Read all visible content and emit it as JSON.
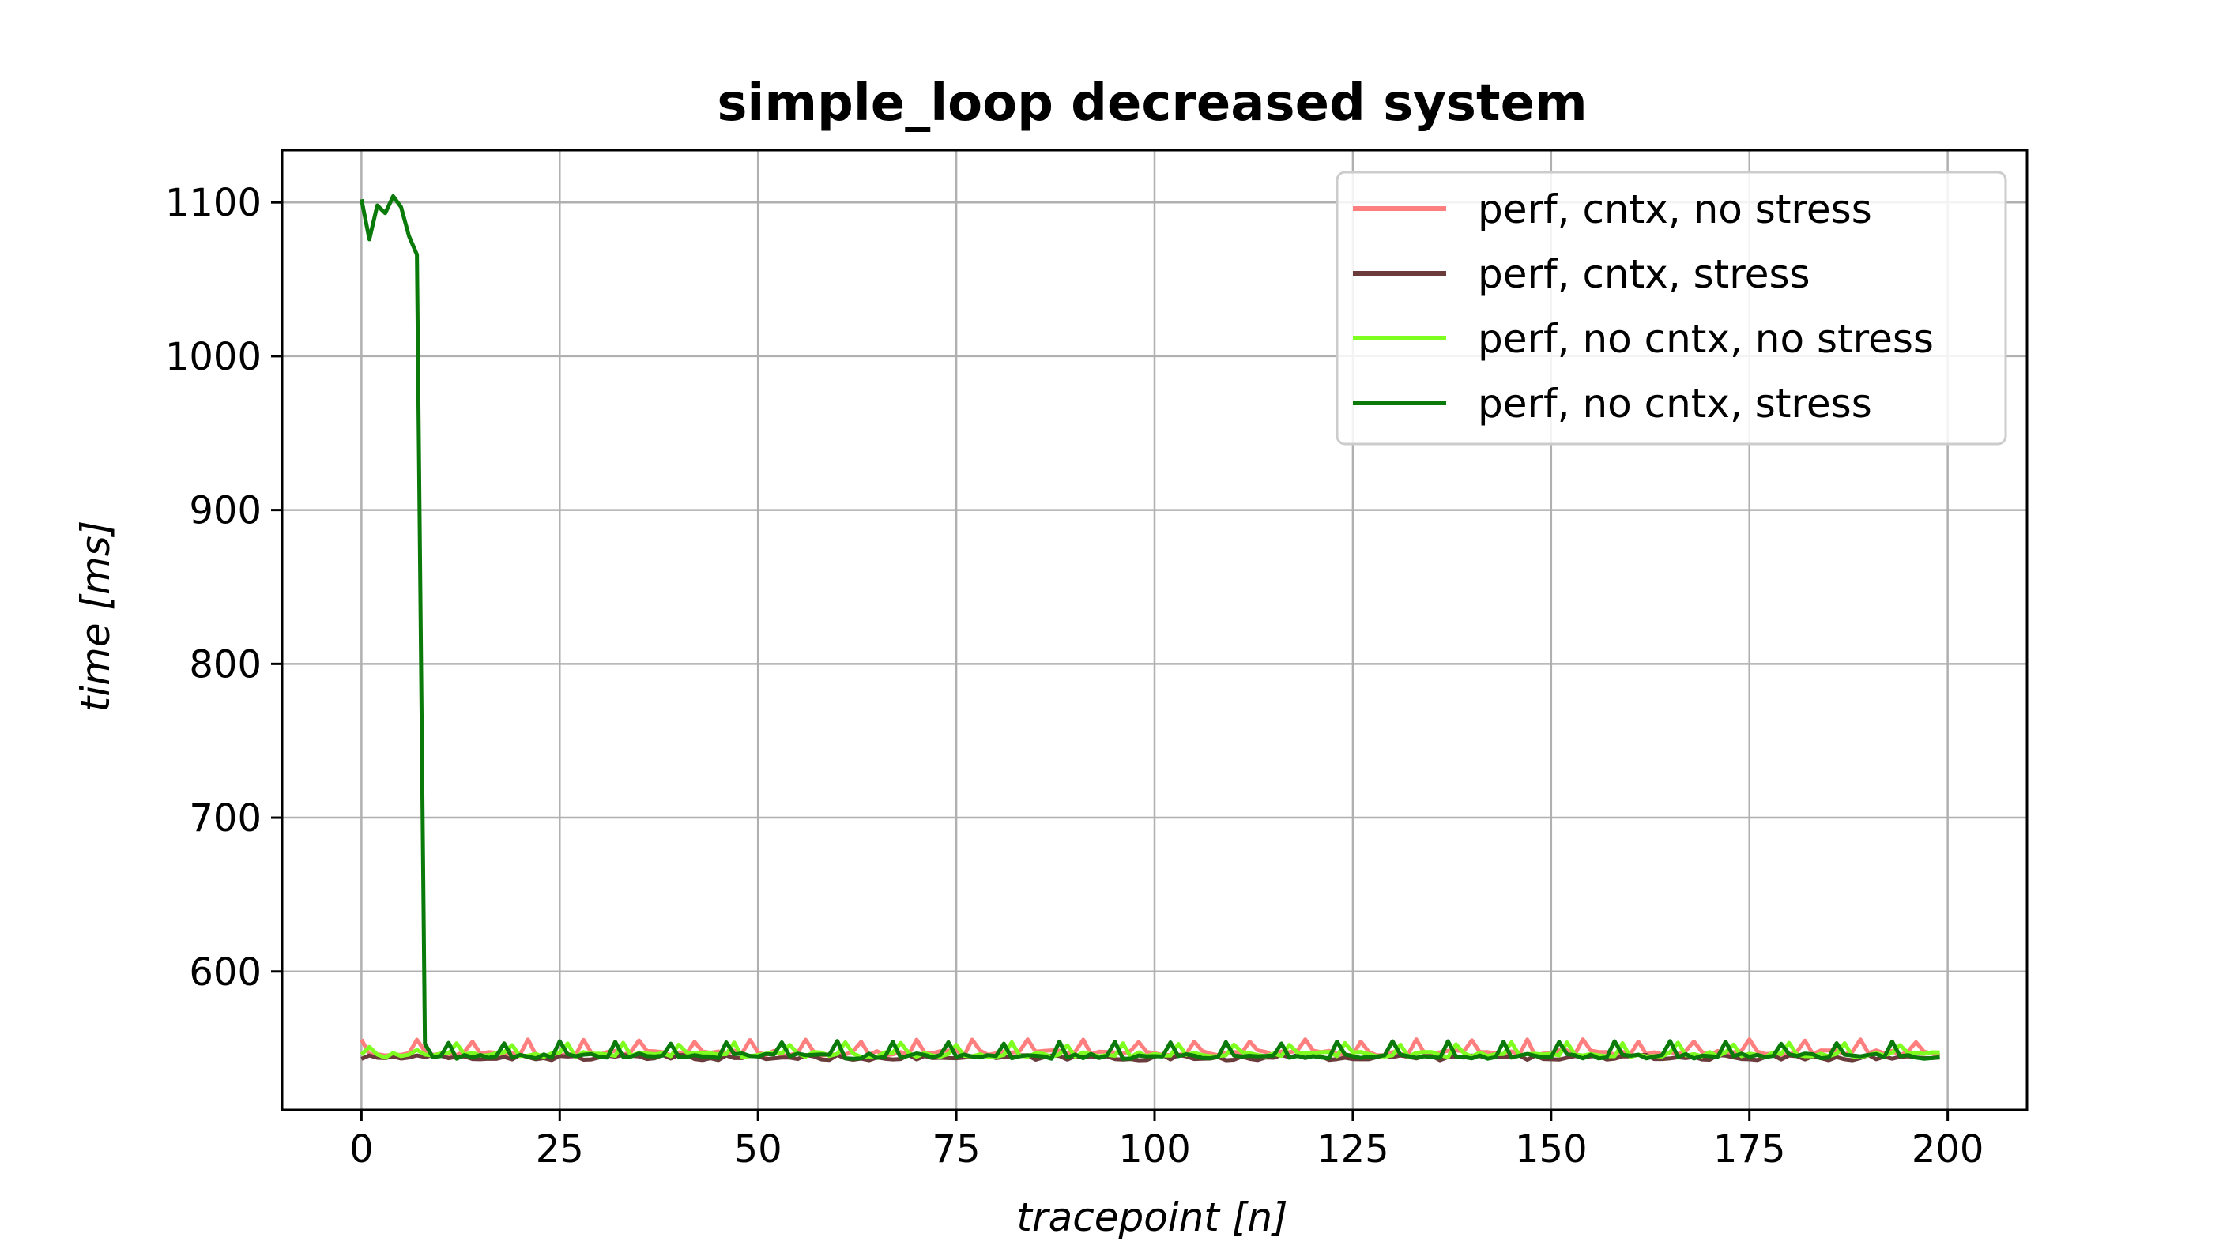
{
  "chart_data": {
    "type": "line",
    "title": "simple_loop decreased system",
    "xlabel": "tracepoint [n]",
    "ylabel": "time [ms]",
    "xlim": [
      -10,
      210
    ],
    "ylim": [
      510,
      1134
    ],
    "xticks": [
      0,
      25,
      50,
      75,
      100,
      125,
      150,
      175,
      200
    ],
    "yticks": [
      600,
      700,
      800,
      900,
      1000,
      1100
    ],
    "grid": true,
    "legend_position": "top-right",
    "n_points": 200,
    "series": [
      {
        "name": "perf, cntx, no stress",
        "color": "#ff7f7f",
        "base": 547,
        "spike_every": 7,
        "spike_value": 556,
        "values_prefix": []
      },
      {
        "name": "perf, cntx, stress",
        "color": "#6b3a3a",
        "base": 544,
        "spike_every": 0,
        "spike_value": 544,
        "values_prefix": []
      },
      {
        "name": "perf, no cntx, no stress",
        "color": "#7fff1f",
        "base": 546,
        "spike_every": 7,
        "spike_value": 554,
        "values_prefix": [
          546,
          551,
          546,
          544,
          547,
          545,
          546,
          549,
          546
        ]
      },
      {
        "name": "perf, no cntx, stress",
        "color": "#0a7a0a",
        "base": 545,
        "spike_every": 7,
        "spike_value": 555,
        "values_prefix": [
          1102,
          1076,
          1098,
          1093,
          1104,
          1097,
          1078,
          1066,
          553
        ]
      }
    ]
  }
}
